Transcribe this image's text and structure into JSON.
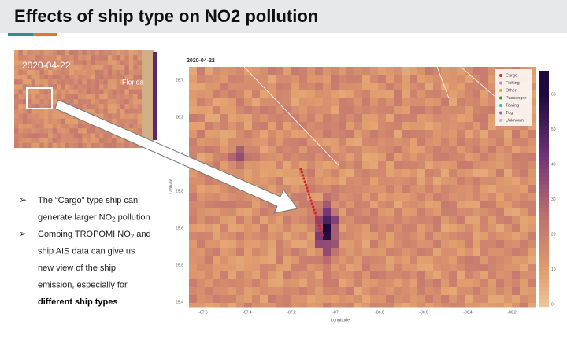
{
  "title": "Effects of ship type on NO2 pollution",
  "inset": {
    "date": "2020-04-22",
    "region": "Florida"
  },
  "map": {
    "date": "2020-04-22",
    "x_label": "Longitude",
    "y_label": "Latitude",
    "x_ticks": [
      "-87.6",
      "-87.4",
      "-87.2",
      "-87",
      "-86.8",
      "-86.6",
      "-86.4",
      "-86.2"
    ],
    "y_ticks": [
      "26.7",
      "26.2",
      "25.9",
      "25.8",
      "25.6",
      "25.5",
      "25.4"
    ],
    "colorbar_ticks": [
      "60",
      "50",
      "40",
      "30",
      "20",
      "10",
      "0"
    ],
    "legend": [
      {
        "name": "Cargo",
        "color": "#d62728"
      },
      {
        "name": "Fishing",
        "color": "#e377c2"
      },
      {
        "name": "Other",
        "color": "#bcbd22"
      },
      {
        "name": "Passenger",
        "color": "#2ca02c"
      },
      {
        "name": "Towing",
        "color": "#17becf"
      },
      {
        "name": "Tug",
        "color": "#9467bd"
      },
      {
        "name": "Unknown",
        "color": "#c5b0d5"
      }
    ]
  },
  "bullets": [
    [
      [
        {
          "text": "The “Cargo” type ship can"
        }
      ],
      [
        {
          "text": "generate larger NO"
        },
        {
          "text": "2",
          "style": "sub"
        },
        {
          "text": " pollution"
        }
      ]
    ],
    [
      [
        {
          "text": "Combing TROPOMI NO"
        },
        {
          "text": "2",
          "style": "sub"
        },
        {
          "text": " and"
        }
      ],
      [
        {
          "text": "ship AIS data can give us"
        }
      ],
      [
        {
          "text": "new view of the ship"
        }
      ],
      [
        {
          "text": "emission, especially for"
        }
      ],
      [
        {
          "text": "different ship types",
          "style": "bold"
        }
      ]
    ]
  ]
}
